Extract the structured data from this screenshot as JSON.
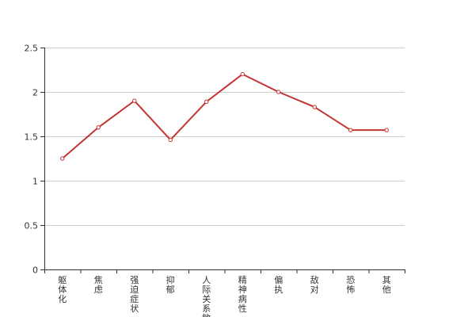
{
  "chart_data": {
    "type": "line",
    "categories": [
      "躯体化",
      "焦虑",
      "强迫症状",
      "抑郁",
      "人际关系敏感",
      "精神病性",
      "偏执",
      "敌对",
      "恐怖",
      "其他"
    ],
    "values": [
      1.25,
      1.6,
      1.9,
      1.46,
      1.89,
      2.2,
      2.0,
      1.83,
      1.57,
      1.57
    ],
    "yticks": [
      "0",
      "0.5",
      "1",
      "1.5",
      "2",
      "2.5"
    ],
    "ylim": [
      0,
      2.5
    ],
    "grid": true,
    "line_color": "#c23531",
    "grid_color": "#cccccc",
    "axis_color": "#333333"
  }
}
